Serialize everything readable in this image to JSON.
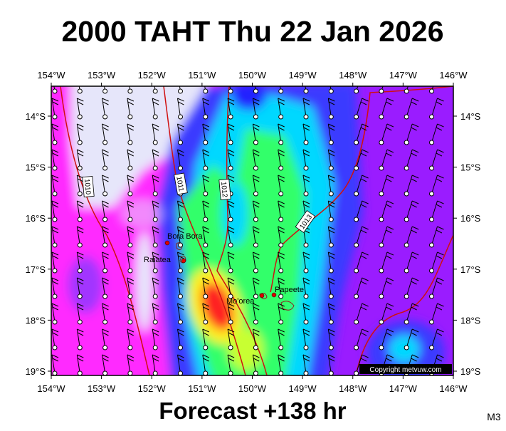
{
  "header": {
    "title": "2000 TAHT Thu 22 Jan 2026"
  },
  "map": {
    "lon_labels": [
      "154°W",
      "153°W",
      "152°W",
      "151°W",
      "150°W",
      "149°W",
      "148°W",
      "147°W",
      "146°W"
    ],
    "lat_labels": [
      "14°S",
      "15°S",
      "16°S",
      "17°S",
      "18°S",
      "19°S"
    ],
    "places": [
      "Bora Bora",
      "Raiatea",
      "Mo'orea",
      "Papeete"
    ],
    "isobars": [
      "1010",
      "1011",
      "1012",
      "1013"
    ],
    "copyright": "Copyright metvuw.com"
  },
  "footer": {
    "forecast": "Forecast +138 hr",
    "code": "M3"
  }
}
